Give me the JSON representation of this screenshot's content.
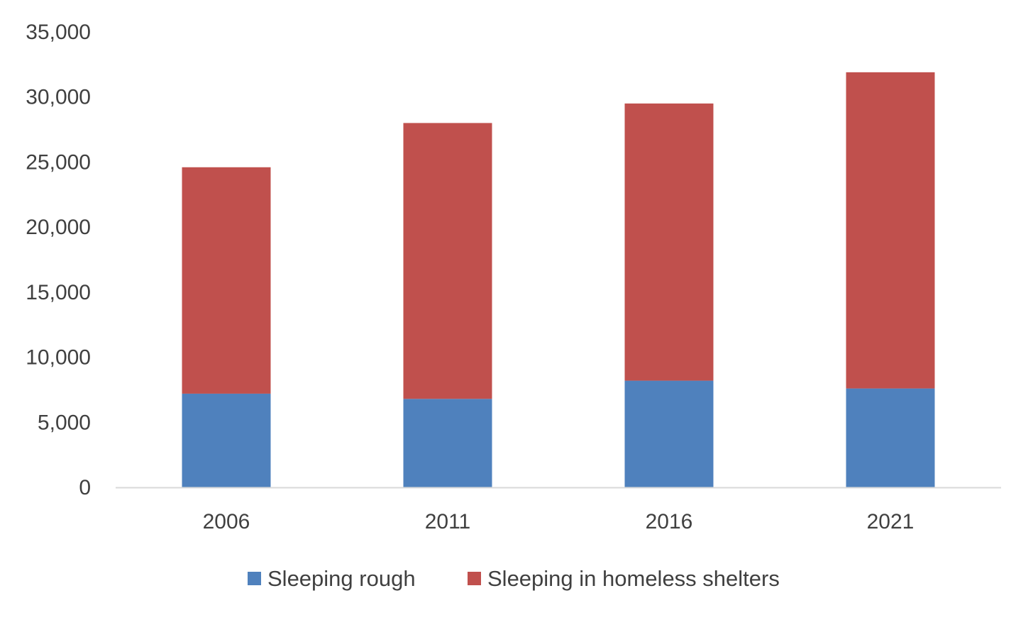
{
  "chart_data": {
    "type": "bar",
    "stacked": true,
    "title": "",
    "xlabel": "",
    "ylabel": "",
    "categories": [
      "2006",
      "2011",
      "2016",
      "2021"
    ],
    "ylim": [
      0,
      35000
    ],
    "yticks": [
      0,
      5000,
      10000,
      15000,
      20000,
      25000,
      30000,
      35000
    ],
    "ytick_labels": [
      "0",
      "5,000",
      "10,000",
      "15,000",
      "20,000",
      "25,000",
      "30,000",
      "35,000"
    ],
    "grid": false,
    "legend": "bottom",
    "series": [
      {
        "name": "Sleeping rough",
        "color": "#4f81bd",
        "values": [
          7200,
          6800,
          8200,
          7600
        ]
      },
      {
        "name": "Sleeping in homeless shelters",
        "color": "#c0504d",
        "values": [
          17400,
          21200,
          21300,
          24300
        ]
      }
    ],
    "axis_color": "#d9d9d9"
  }
}
